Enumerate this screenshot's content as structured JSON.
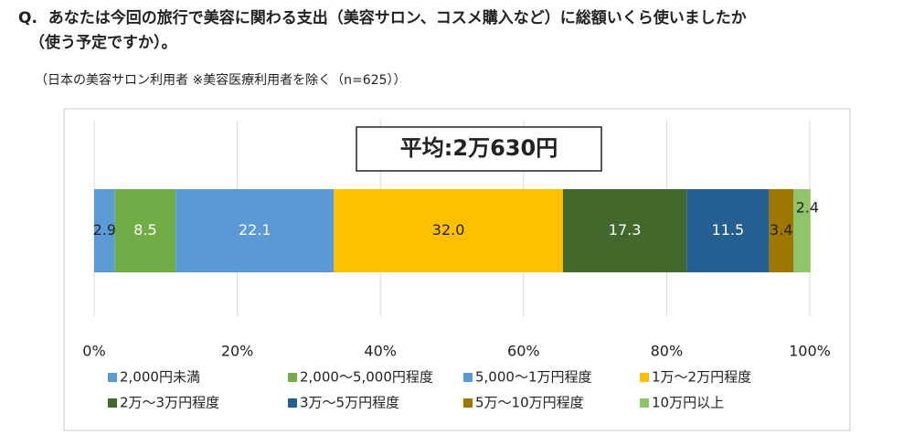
{
  "chart_data": {
    "type": "bar",
    "orientation": "horizontal",
    "stacked": true,
    "title": [
      "Q.  あなたは今回の旅行で美容に関わる支出（美容サロン、コスメ購入など）に総額いくら使いましたか",
      "（使う予定ですか）。"
    ],
    "subtitle": "（日本の美容サロン利用者 ※美容医療利用者を除く（n=625））",
    "annotation": "平均:2万630円",
    "series": [
      {
        "name": "2,000円未満",
        "color": "#5b9bd5",
        "values": [
          2.9
        ]
      },
      {
        "name": "2,000～5,000円程度",
        "color": "#70ad47",
        "values": [
          8.5
        ]
      },
      {
        "name": "5,000～1万円程度",
        "color": "#5a98d6",
        "values": [
          22.1
        ]
      },
      {
        "name": "1万～2万円程度",
        "color": "#ffc000",
        "values": [
          32
        ],
        "value_labels": [
          "32.0"
        ]
      },
      {
        "name": "2万～3万円程度",
        "color": "#43682b",
        "values": [
          17.3
        ]
      },
      {
        "name": "3万～5万円程度",
        "color": "#255e91",
        "values": [
          11.5
        ]
      },
      {
        "name": "5万～10万円程度",
        "color": "#9e7700",
        "values": [
          3.4
        ]
      },
      {
        "name": "10万円以上",
        "color": "#8fc46a",
        "values": [
          2.4
        ]
      }
    ],
    "xlim": [
      0,
      100
    ],
    "xticks": [
      {
        "value": 0,
        "label": "0%"
      },
      {
        "value": 20,
        "label": "20%"
      },
      {
        "value": 40,
        "label": "40%"
      },
      {
        "value": 60,
        "label": "60%"
      },
      {
        "value": 80,
        "label": "80%"
      },
      {
        "value": 100,
        "label": "100%"
      }
    ],
    "grid": true,
    "legend": "bottom"
  }
}
